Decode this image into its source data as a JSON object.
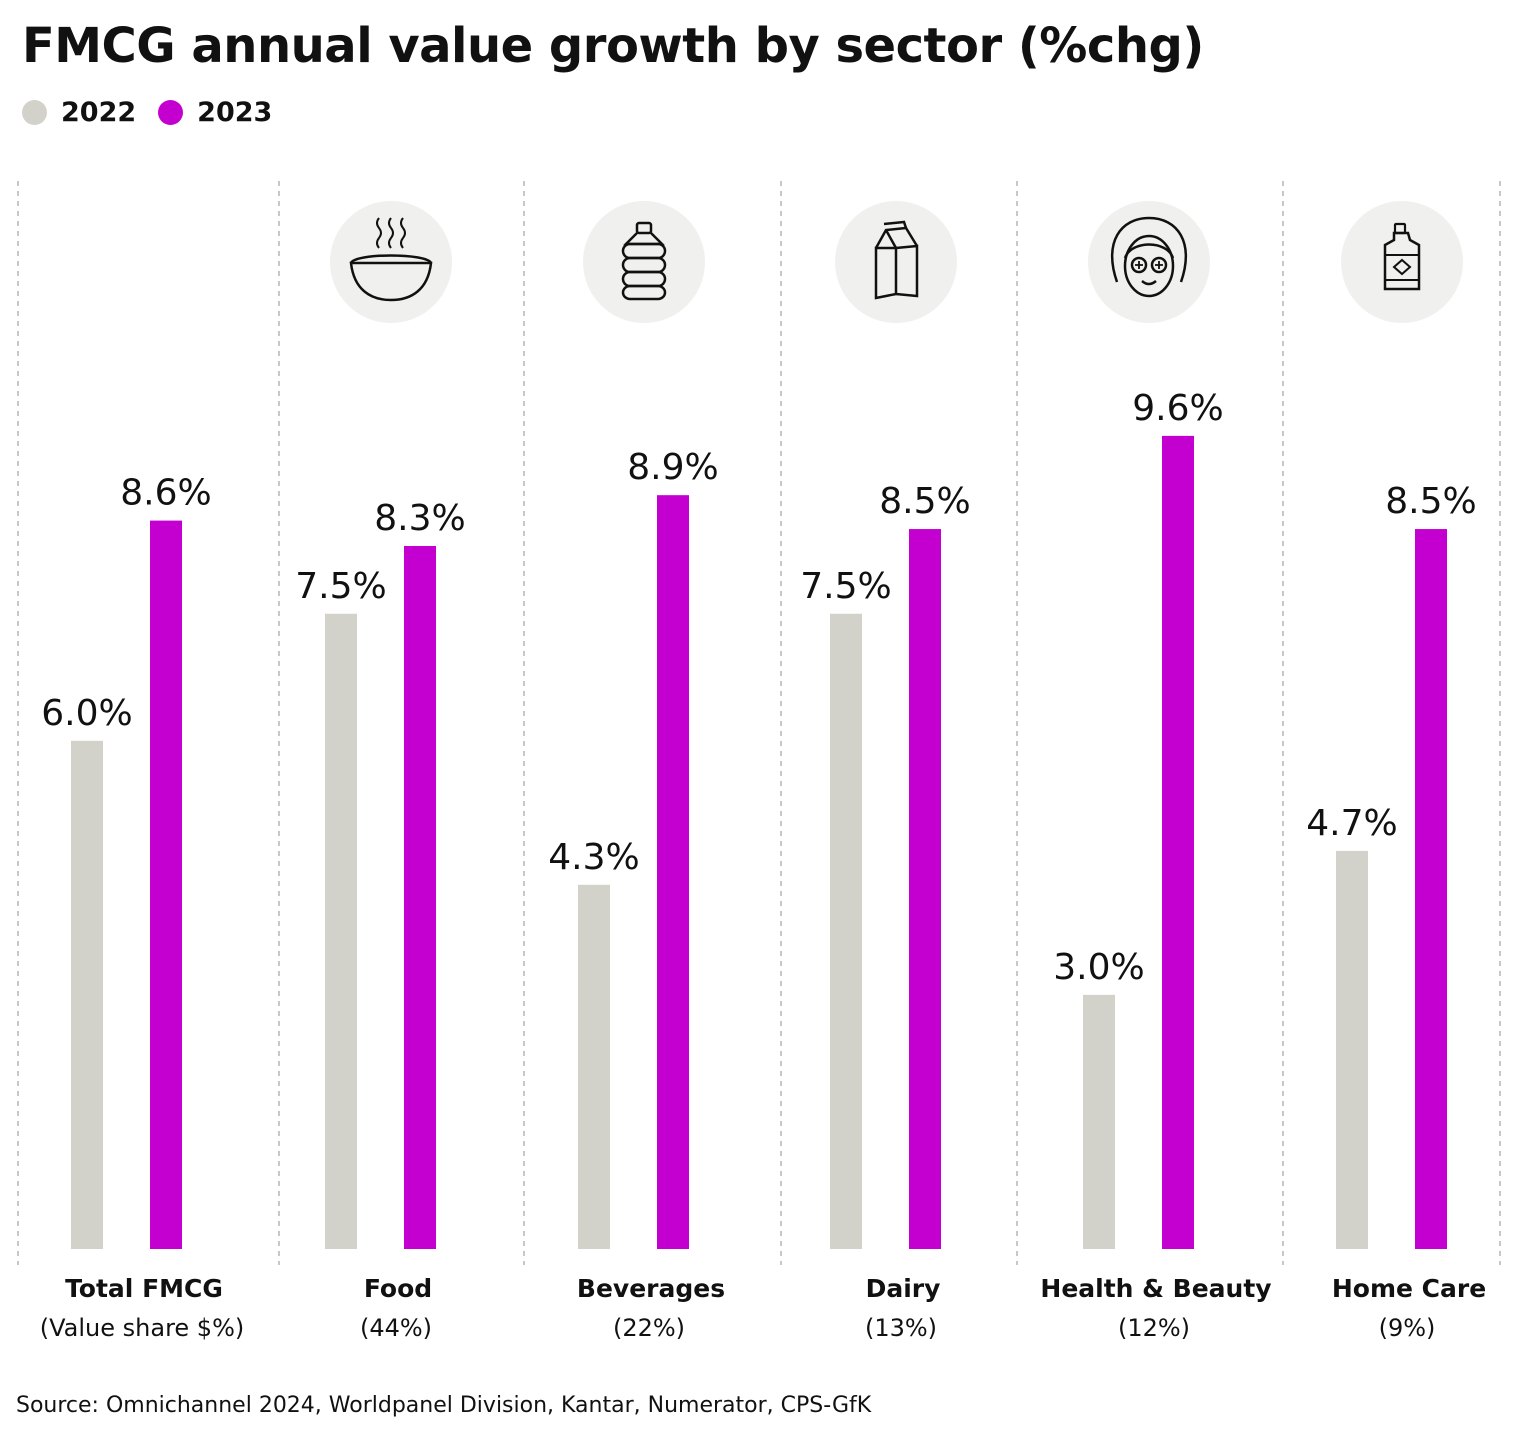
{
  "chart_data": {
    "type": "bar",
    "title": "FMCG annual value growth by sector (%chg)",
    "categories": [
      "Total FMCG",
      "Food",
      "Beverages",
      "Dairy",
      "Health & Beauty",
      "Home Care"
    ],
    "category_subtitles": [
      "(Value share $%)",
      "(44%)",
      "(22%)",
      "(13%)",
      "(12%)",
      "(9%)"
    ],
    "category_icons": [
      "",
      "soup-bowl-icon",
      "water-bottle-icon",
      "milk-carton-icon",
      "face-mask-icon",
      "detergent-bottle-icon"
    ],
    "series": [
      {
        "name": "2022",
        "color": "#d3d2ca",
        "values": [
          6.0,
          7.5,
          4.3,
          7.5,
          3.0,
          4.7
        ],
        "labels": [
          "6.0%",
          "7.5%",
          "4.3%",
          "7.5%",
          "3.0%",
          "4.7%"
        ]
      },
      {
        "name": "2023",
        "color": "#c400d1",
        "values": [
          8.6,
          8.3,
          8.9,
          8.5,
          9.6,
          8.5
        ],
        "labels": [
          "8.6%",
          "8.3%",
          "8.9%",
          "8.5%",
          "9.6%",
          "8.5%"
        ]
      }
    ],
    "ylim": [
      0,
      9.6
    ],
    "grid": false,
    "legend_position": "top-left",
    "source": "Source: Omnichannel 2024, Worldpanel Division, Kantar, Numerator, CPS-GfK"
  },
  "colors": {
    "icon_circle": "#f0f0ee",
    "divider": "#b5b5b5"
  }
}
